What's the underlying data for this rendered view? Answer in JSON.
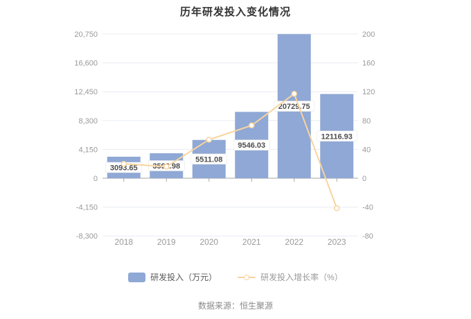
{
  "title": "历年研发投入变化情况",
  "source_note": "数据来源：恒生聚源",
  "colors": {
    "bar": "#8FA8D5",
    "line": "#F8D49E",
    "grid": "#E8ECF3",
    "zero_axis": "#A6A6A6",
    "axis_text": "#999999",
    "title_text": "#333333",
    "label_text": "#4D4D4D",
    "label_bg": "#FFFFFF",
    "label_border": "#E0E0E0"
  },
  "legend": {
    "bar": {
      "label": "研发投入（万元）"
    },
    "line": {
      "label": "研发投入增长率（%）"
    }
  },
  "chart_data": {
    "type": "bar",
    "title": "历年研发投入变化情况",
    "categories": [
      "2018",
      "2019",
      "2020",
      "2021",
      "2022",
      "2023"
    ],
    "series": [
      {
        "name": "研发投入（万元）",
        "type": "bar",
        "axis": "left",
        "values": [
          3093.65,
          3592.98,
          5511.08,
          9546.03,
          20729.75,
          12116.93
        ],
        "labels": [
          "3093.65",
          "3592.98",
          "5511.08",
          "9546.03",
          "20729.75",
          "12116.93"
        ]
      },
      {
        "name": "研发投入增长率（%）",
        "type": "line",
        "axis": "right",
        "values": [
          20.0,
          16.1,
          53.4,
          73.2,
          117.1,
          -41.6
        ],
        "note": "values estimated from line position; no data labels shown"
      }
    ],
    "left_axis": {
      "label": "研发投入（万元）",
      "ticks": [
        "20,750",
        "16,600",
        "12,450",
        "8,300",
        "4,150",
        "0",
        "-4,150",
        "-8,300"
      ],
      "values": [
        20750,
        16600,
        12450,
        8300,
        4150,
        0,
        -4150,
        -8300
      ],
      "range": [
        -8300,
        20750
      ]
    },
    "right_axis": {
      "label": "研发投入增长率（%）",
      "ticks": [
        "200",
        "160",
        "120",
        "80",
        "40",
        "0",
        "-40",
        "-80"
      ],
      "values": [
        200,
        160,
        120,
        80,
        40,
        0,
        -40,
        -80
      ],
      "range": [
        -80,
        200
      ]
    },
    "grid": true,
    "legend_position": "bottom"
  }
}
